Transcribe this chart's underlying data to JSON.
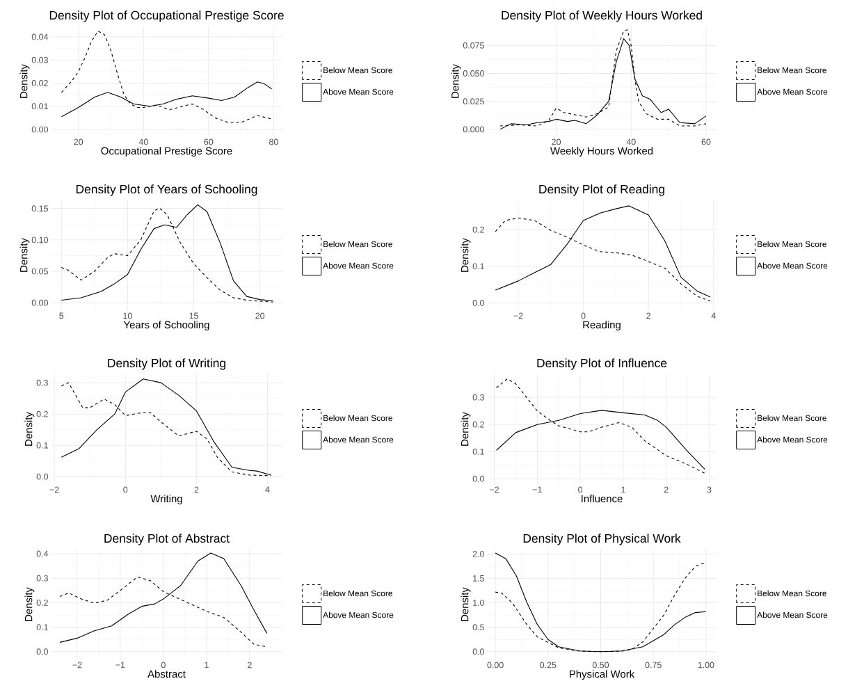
{
  "chart_data": [
    {
      "type": "line",
      "title": "Density Plot of Occupational Prestige Score",
      "xlabel": "Occupational Prestige Score",
      "ylabel": "Density",
      "legend": "right",
      "grid": true,
      "xlim": [
        11.5,
        82.7
      ],
      "ylim": [
        -0.003,
        0.0445
      ],
      "xticks": [
        20,
        40,
        60,
        80
      ],
      "yticks": [
        {
          "value": 0,
          "label": "0.00"
        },
        {
          "value": 0.01,
          "label": "0.01"
        },
        {
          "value": 0.02,
          "label": "0.02"
        },
        {
          "value": 0.03,
          "label": "0.03"
        },
        {
          "value": 0.04,
          "label": "0.04"
        }
      ],
      "series": [
        {
          "name": "Below Mean Score",
          "color": "#000000",
          "line_style": "dashed",
          "x": [
            14.8,
            18,
            20,
            22,
            24,
            26,
            28,
            30,
            32,
            34,
            36,
            38,
            40,
            44,
            48,
            52,
            55,
            58,
            62,
            66,
            70,
            75,
            79.4
          ],
          "values": [
            0.016,
            0.021,
            0.025,
            0.031,
            0.038,
            0.0425,
            0.041,
            0.034,
            0.024,
            0.015,
            0.011,
            0.0095,
            0.0095,
            0.0105,
            0.0085,
            0.01,
            0.011,
            0.009,
            0.005,
            0.003,
            0.003,
            0.006,
            0.0045
          ]
        },
        {
          "name": "Above Mean Score",
          "color": "#000000",
          "line_style": "solid",
          "x": [
            14.8,
            20,
            25,
            29,
            33,
            37,
            42,
            46,
            50,
            55,
            60,
            64,
            68,
            72,
            75,
            77,
            79.4
          ],
          "values": [
            0.0055,
            0.0095,
            0.014,
            0.016,
            0.014,
            0.011,
            0.01,
            0.011,
            0.013,
            0.0145,
            0.0135,
            0.0125,
            0.014,
            0.018,
            0.0205,
            0.0198,
            0.0175
          ]
        }
      ]
    },
    {
      "type": "line",
      "title": "Density Plot of Weekly Hours Worked",
      "xlabel": "Weekly Hours Worked",
      "ylabel": "Density",
      "legend": "right",
      "grid": true,
      "xlim": [
        1.5,
        62.8
      ],
      "ylim": [
        -0.0063,
        0.092
      ],
      "xticks": [
        20,
        40,
        60
      ],
      "yticks": [
        {
          "value": 0,
          "label": "0.000"
        },
        {
          "value": 0.025,
          "label": "0.025"
        },
        {
          "value": 0.05,
          "label": "0.050"
        },
        {
          "value": 0.075,
          "label": "0.075"
        }
      ],
      "series": [
        {
          "name": "Below Mean Score",
          "color": "#000000",
          "line_style": "dashed",
          "x": [
            5,
            10,
            15,
            18,
            20,
            22,
            25,
            28,
            31,
            34,
            36,
            38,
            39,
            40,
            41,
            42,
            44,
            47,
            50,
            53,
            57,
            60
          ],
          "values": [
            0.003,
            0.004,
            0.003,
            0.008,
            0.019,
            0.015,
            0.013,
            0.011,
            0.014,
            0.02,
            0.07,
            0.088,
            0.089,
            0.075,
            0.045,
            0.025,
            0.014,
            0.009,
            0.009,
            0.003,
            0.003,
            0.005
          ]
        },
        {
          "name": "Above Mean Score",
          "color": "#000000",
          "line_style": "solid",
          "x": [
            5,
            8,
            12,
            15,
            18,
            20,
            23,
            25,
            28,
            31,
            34,
            36,
            38,
            39.5,
            41,
            43,
            45,
            48,
            50,
            53,
            57,
            60
          ],
          "values": [
            0.0,
            0.005,
            0.004,
            0.006,
            0.007,
            0.009,
            0.007,
            0.008,
            0.005,
            0.013,
            0.025,
            0.06,
            0.081,
            0.075,
            0.045,
            0.03,
            0.027,
            0.015,
            0.018,
            0.006,
            0.005,
            0.012
          ]
        }
      ]
    },
    {
      "type": "line",
      "title": "Density Plot of Years of Schooling",
      "xlabel": "Years of Schooling",
      "ylabel": "Density",
      "legend": "right",
      "grid": true,
      "xlim": [
        4.2,
        21.7
      ],
      "ylim": [
        -0.012,
        0.163
      ],
      "xticks": [
        5,
        10,
        15,
        20
      ],
      "yticks": [
        {
          "value": 0,
          "label": "0.00"
        },
        {
          "value": 0.05,
          "label": "0.05"
        },
        {
          "value": 0.1,
          "label": "0.10"
        },
        {
          "value": 0.15,
          "label": "0.15"
        }
      ],
      "series": [
        {
          "name": "Below Mean Score",
          "color": "#000000",
          "line_style": "dashed",
          "x": [
            5,
            5.5,
            6.5,
            7.5,
            8.5,
            9,
            10,
            11,
            12,
            12.4,
            13,
            14,
            15,
            16,
            17,
            18,
            19,
            21
          ],
          "values": [
            0.056,
            0.052,
            0.036,
            0.05,
            0.072,
            0.078,
            0.075,
            0.1,
            0.146,
            0.151,
            0.14,
            0.095,
            0.062,
            0.04,
            0.02,
            0.008,
            0.004,
            0.001
          ]
        },
        {
          "name": "Above Mean Score",
          "color": "#000000",
          "line_style": "solid",
          "x": [
            5,
            6.5,
            8,
            9,
            10,
            11,
            12,
            12.8,
            13.7,
            14.5,
            15.3,
            16,
            17,
            18,
            19,
            20,
            21
          ],
          "values": [
            0.004,
            0.008,
            0.018,
            0.03,
            0.045,
            0.085,
            0.118,
            0.124,
            0.12,
            0.14,
            0.156,
            0.145,
            0.095,
            0.035,
            0.01,
            0.005,
            0.003
          ]
        }
      ]
    },
    {
      "type": "line",
      "title": "Density Plot of Reading",
      "xlabel": "Reading",
      "ylabel": "Density",
      "legend": "right",
      "grid": true,
      "xlim": [
        -2.96,
        4.09
      ],
      "ylim": [
        -0.02,
        0.28
      ],
      "xticks": [
        {
          "value": -2,
          "label": "−2"
        },
        0,
        2,
        4
      ],
      "yticks": [
        {
          "value": 0,
          "label": "0.0"
        },
        {
          "value": 0.1,
          "label": "0.1"
        },
        {
          "value": 0.2,
          "label": "0.2"
        }
      ],
      "series": [
        {
          "name": "Below Mean Score",
          "color": "#000000",
          "line_style": "dashed",
          "x": [
            -2.7,
            -2.4,
            -2,
            -1.5,
            -1,
            -0.5,
            0,
            0.5,
            1,
            1.5,
            2,
            2.5,
            3,
            3.5,
            3.9
          ],
          "values": [
            0.195,
            0.225,
            0.232,
            0.225,
            0.198,
            0.18,
            0.158,
            0.14,
            0.137,
            0.13,
            0.113,
            0.095,
            0.052,
            0.018,
            0.005
          ]
        },
        {
          "name": "Above Mean Score",
          "color": "#000000",
          "line_style": "solid",
          "x": [
            -2.7,
            -2,
            -1,
            -0.5,
            0,
            0.5,
            1,
            1.4,
            2,
            2.5,
            3,
            3.5,
            3.9
          ],
          "values": [
            0.035,
            0.06,
            0.105,
            0.16,
            0.225,
            0.245,
            0.257,
            0.265,
            0.24,
            0.17,
            0.07,
            0.032,
            0.016
          ]
        }
      ]
    },
    {
      "type": "line",
      "title": "Density Plot of Writing",
      "xlabel": "Writing",
      "ylabel": "Density",
      "legend": "right",
      "grid": true,
      "xlim": [
        -2.1,
        4.42
      ],
      "ylim": [
        -0.024,
        0.327
      ],
      "xticks": [
        {
          "value": -2,
          "label": "−2"
        },
        0,
        2,
        4
      ],
      "yticks": [
        {
          "value": 0,
          "label": "0.0"
        },
        {
          "value": 0.1,
          "label": "0.1"
        },
        {
          "value": 0.2,
          "label": "0.2"
        },
        {
          "value": 0.3,
          "label": "0.3"
        }
      ],
      "series": [
        {
          "name": "Below Mean Score",
          "color": "#000000",
          "line_style": "dashed",
          "x": [
            -1.8,
            -1.6,
            -1.2,
            -1,
            -0.6,
            -0.3,
            0,
            0.5,
            0.7,
            1,
            1.5,
            2,
            2.3,
            2.6,
            3,
            3.5,
            4.1
          ],
          "values": [
            0.29,
            0.3,
            0.22,
            0.22,
            0.248,
            0.23,
            0.195,
            0.205,
            0.205,
            0.175,
            0.13,
            0.145,
            0.12,
            0.06,
            0.015,
            0.005,
            0.003
          ]
        },
        {
          "name": "Above Mean Score",
          "color": "#000000",
          "line_style": "solid",
          "x": [
            -1.8,
            -1.3,
            -0.8,
            -0.3,
            0,
            0.5,
            1,
            1.5,
            2,
            2.5,
            3,
            3.5,
            3.7,
            4.1
          ],
          "values": [
            0.062,
            0.09,
            0.15,
            0.2,
            0.27,
            0.312,
            0.3,
            0.26,
            0.21,
            0.11,
            0.03,
            0.02,
            0.018,
            0.005
          ]
        }
      ]
    },
    {
      "type": "line",
      "title": "Density Plot of Influence",
      "xlabel": "Influence",
      "ylabel": "Density",
      "legend": "right",
      "grid": true,
      "xlim": [
        -2.17,
        3.17
      ],
      "ylim": [
        -0.02,
        0.385
      ],
      "xticks": [
        {
          "value": -2,
          "label": "−2"
        },
        {
          "value": -1,
          "label": "−1"
        },
        0,
        1,
        2,
        3
      ],
      "yticks": [
        {
          "value": 0,
          "label": "0.0"
        },
        {
          "value": 0.1,
          "label": "0.1"
        },
        {
          "value": 0.2,
          "label": "0.2"
        },
        {
          "value": 0.3,
          "label": "0.3"
        }
      ],
      "series": [
        {
          "name": "Below Mean Score",
          "color": "#000000",
          "line_style": "dashed",
          "x": [
            -1.95,
            -1.7,
            -1.5,
            -1,
            -0.7,
            -0.5,
            0,
            0.2,
            0.5,
            0.9,
            1.2,
            1.5,
            2,
            2.5,
            2.9
          ],
          "values": [
            0.335,
            0.368,
            0.35,
            0.25,
            0.215,
            0.195,
            0.173,
            0.173,
            0.19,
            0.207,
            0.19,
            0.14,
            0.085,
            0.052,
            0.02
          ]
        },
        {
          "name": "Above Mean Score",
          "color": "#000000",
          "line_style": "solid",
          "x": [
            -1.95,
            -1.5,
            -1,
            -0.5,
            0,
            0.5,
            1,
            1.5,
            1.8,
            2,
            2.5,
            2.9
          ],
          "values": [
            0.105,
            0.17,
            0.2,
            0.215,
            0.24,
            0.252,
            0.243,
            0.235,
            0.215,
            0.19,
            0.1,
            0.035
          ]
        }
      ]
    },
    {
      "type": "line",
      "title": "Density Plot of Abstract",
      "xlabel": "Abstract",
      "ylabel": "Density",
      "legend": "right",
      "grid": true,
      "xlim": [
        -2.61,
        2.76
      ],
      "ylim": [
        -0.032,
        0.417
      ],
      "xticks": [
        {
          "value": -2,
          "label": "−2"
        },
        {
          "value": -1,
          "label": "−1"
        },
        0,
        1,
        2
      ],
      "yticks": [
        {
          "value": 0,
          "label": "0.0"
        },
        {
          "value": 0.1,
          "label": "0.1"
        },
        {
          "value": 0.2,
          "label": "0.2"
        },
        {
          "value": 0.3,
          "label": "0.3"
        },
        {
          "value": 0.4,
          "label": "0.4"
        }
      ],
      "series": [
        {
          "name": "Below Mean Score",
          "color": "#000000",
          "line_style": "dashed",
          "x": [
            -2.4,
            -2.2,
            -1.9,
            -1.6,
            -1.3,
            -1,
            -0.6,
            -0.3,
            0,
            0.5,
            1,
            1.4,
            1.8,
            2.1,
            2.4
          ],
          "values": [
            0.225,
            0.24,
            0.215,
            0.198,
            0.21,
            0.25,
            0.305,
            0.29,
            0.245,
            0.205,
            0.165,
            0.14,
            0.08,
            0.03,
            0.02
          ]
        },
        {
          "name": "Above Mean Score",
          "color": "#000000",
          "line_style": "solid",
          "x": [
            -2.4,
            -2,
            -1.6,
            -1.2,
            -0.8,
            -0.5,
            -0.2,
            0,
            0.4,
            0.8,
            1.1,
            1.4,
            1.8,
            2.1,
            2.4
          ],
          "values": [
            0.038,
            0.055,
            0.085,
            0.105,
            0.155,
            0.185,
            0.195,
            0.215,
            0.27,
            0.37,
            0.403,
            0.38,
            0.27,
            0.17,
            0.075
          ]
        }
      ]
    },
    {
      "type": "line",
      "title": "Density Plot of Physical Work",
      "xlabel": "Physical Work",
      "ylabel": "Density",
      "legend": "right",
      "grid": true,
      "xlim": [
        -0.04,
        1.05
      ],
      "ylim": [
        -0.16,
        2.09
      ],
      "xticks": [
        {
          "value": 0,
          "label": "0.00"
        },
        {
          "value": 0.25,
          "label": "0.25"
        },
        {
          "value": 0.5,
          "label": "0.50"
        },
        {
          "value": 0.75,
          "label": "0.75"
        },
        {
          "value": 1,
          "label": "1.00"
        }
      ],
      "yticks": [
        {
          "value": 0,
          "label": "0.0"
        },
        {
          "value": 0.5,
          "label": "0.5"
        },
        {
          "value": 1,
          "label": "1.0"
        },
        {
          "value": 1.5,
          "label": "1.5"
        },
        {
          "value": 2,
          "label": "2.0"
        }
      ],
      "series": [
        {
          "name": "Below Mean Score",
          "color": "#000000",
          "line_style": "dashed",
          "x": [
            0,
            0.03,
            0.08,
            0.15,
            0.2,
            0.3,
            0.4,
            0.5,
            0.6,
            0.65,
            0.7,
            0.8,
            0.85,
            0.9,
            0.95,
            1
          ],
          "values": [
            1.22,
            1.2,
            1.0,
            0.55,
            0.3,
            0.08,
            0.01,
            0.0,
            0.01,
            0.05,
            0.2,
            0.75,
            1.15,
            1.5,
            1.75,
            1.83
          ]
        },
        {
          "name": "Above Mean Score",
          "color": "#000000",
          "line_style": "solid",
          "x": [
            0,
            0.05,
            0.1,
            0.15,
            0.2,
            0.25,
            0.3,
            0.4,
            0.5,
            0.6,
            0.7,
            0.8,
            0.85,
            0.9,
            0.95,
            1
          ],
          "values": [
            2.02,
            1.9,
            1.55,
            1.0,
            0.55,
            0.25,
            0.1,
            0.015,
            0.0,
            0.015,
            0.1,
            0.35,
            0.55,
            0.7,
            0.8,
            0.82
          ]
        }
      ]
    }
  ]
}
